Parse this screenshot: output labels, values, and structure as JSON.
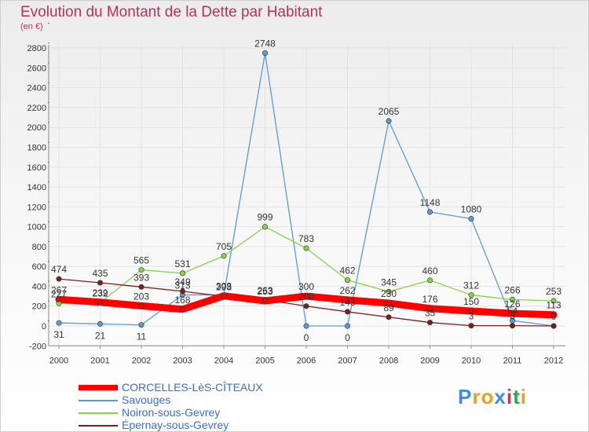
{
  "header": {
    "title": "Evolution du Montant de la Dette par Habitant",
    "subtitle": "(en €)"
  },
  "logo": {
    "text": "Proxiti",
    "letter_colors": [
      "#3a8ee6",
      "#e8a21c",
      "#e8a21c",
      "#3a8ee6",
      "#d9304f",
      "#2aa84a",
      "#e8a21c"
    ]
  },
  "chart_data": {
    "type": "line",
    "title": "Evolution du Montant de la Dette par Habitant",
    "subtitle": "(en €)",
    "categories": [
      "2000",
      "2001",
      "2002",
      "2003",
      "2004",
      "2005",
      "2006",
      "2007",
      "2008",
      "2009",
      "2010",
      "2011",
      "2012"
    ],
    "ylim": [
      -200,
      2800
    ],
    "yticks": [
      -200,
      0,
      200,
      400,
      600,
      800,
      1000,
      1200,
      1400,
      1600,
      1800,
      2000,
      2200,
      2400,
      2600,
      2800
    ],
    "grid": true,
    "legend_position": "bottom-left",
    "series": [
      {
        "name": "CORCELLES-LèS-CÎTEAUX",
        "color": "#ff0000",
        "values": [
          267,
          239,
          203,
          168,
          303,
          253,
          300,
          262,
          230,
          176,
          150,
          126,
          113
        ],
        "labels": [
          "267",
          "239",
          "203",
          "168",
          "303",
          "253",
          "300",
          "262",
          "230",
          "176",
          "150",
          "126",
          "113"
        ]
      },
      {
        "name": "Savouges",
        "color": "#5b9bd5",
        "values": [
          31,
          21,
          11,
          313,
          313,
          2748,
          0,
          0,
          2065,
          1148,
          1080,
          54,
          0
        ],
        "labels": [
          "31",
          "21",
          "11",
          "313",
          "",
          "2748",
          "0",
          "0",
          "2065",
          "1148",
          "1080",
          "54",
          ""
        ]
      },
      {
        "name": "Noiron-sous-Gevrey",
        "color": "#86d34a",
        "values": [
          227,
          232,
          565,
          531,
          705,
          999,
          783,
          462,
          345,
          460,
          312,
          266,
          253
        ],
        "labels": [
          "227",
          "232",
          "565",
          "531",
          "705",
          "999",
          "783",
          "462",
          "345",
          "460",
          "312",
          "266",
          "253"
        ]
      },
      {
        "name": "Épernay-sous-Gevrey",
        "color": "#7b1f1f",
        "values": [
          474,
          435,
          393,
          349,
          298,
          263,
          200,
          143,
          89,
          35,
          3,
          3,
          0
        ],
        "labels": [
          "474",
          "435",
          "393",
          "349",
          "298",
          "263",
          "200",
          "143",
          "89",
          "35",
          "3",
          "3",
          "0"
        ]
      }
    ]
  }
}
